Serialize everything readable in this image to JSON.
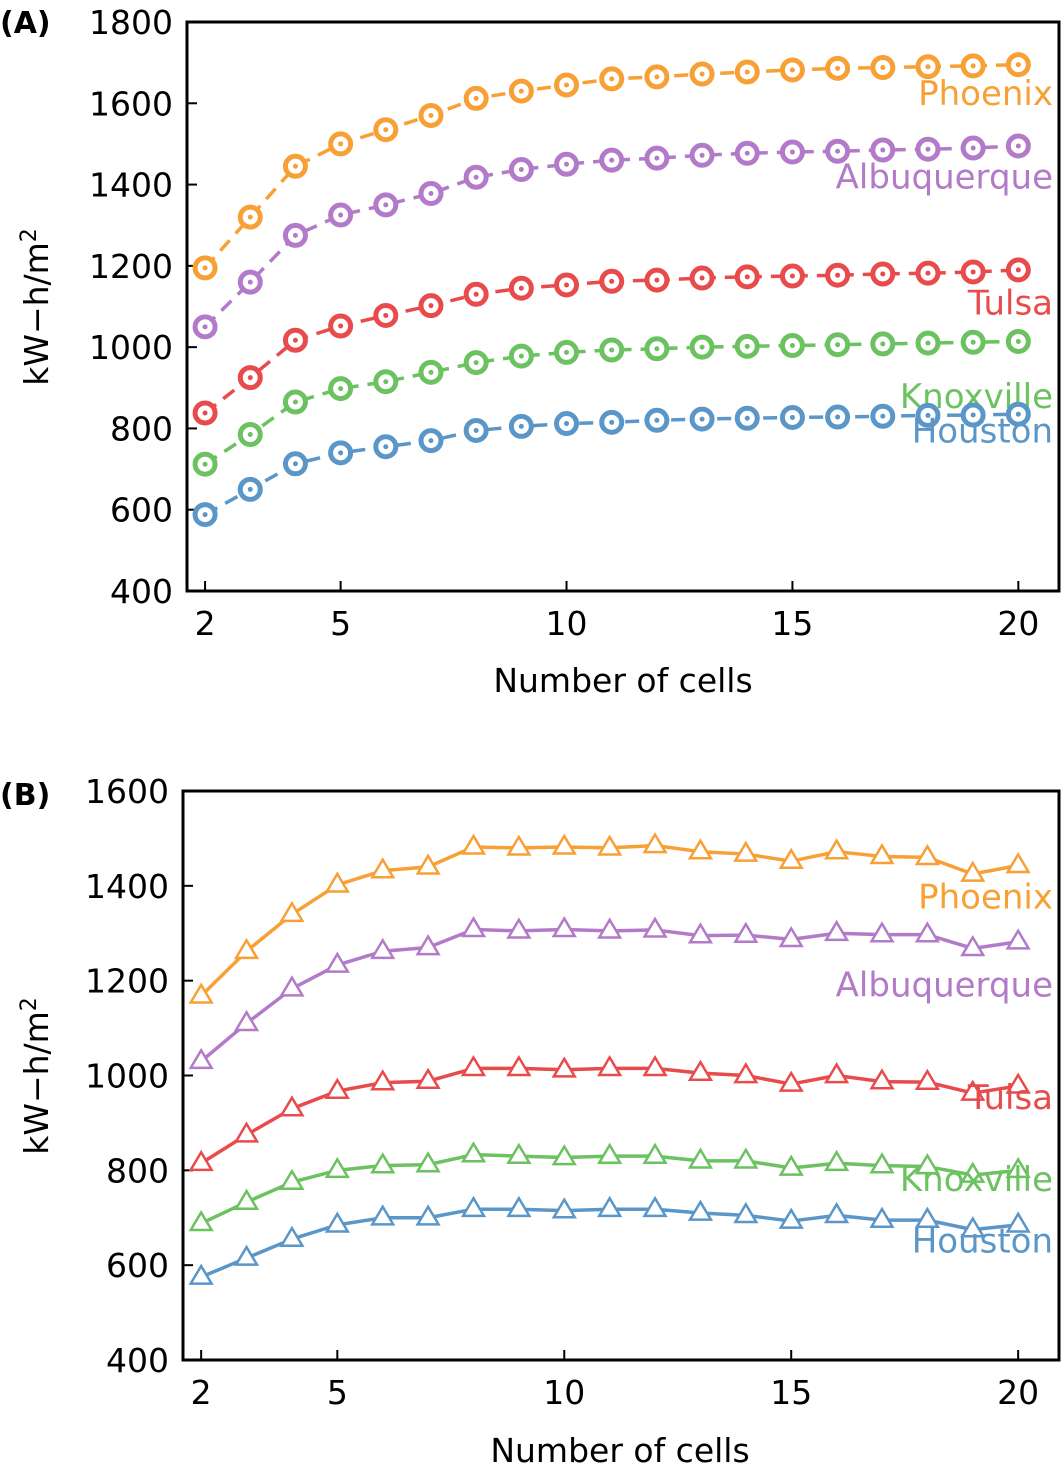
{
  "chart_data": [
    {
      "panel": "(A)",
      "type": "line",
      "marker": "circle",
      "line_style": "dashed",
      "xlabel": "Number of cells",
      "ylabel_main": "kW−h/m",
      "ylabel_sup": "2",
      "xlim": [
        1.6,
        20.9
      ],
      "ylim": [
        400,
        1800
      ],
      "xticks": [
        2,
        5,
        10,
        15,
        20
      ],
      "yticks": [
        400,
        600,
        800,
        1000,
        1200,
        1400,
        1600,
        1800
      ],
      "x": [
        2,
        3,
        4,
        5,
        6,
        7,
        8,
        9,
        10,
        11,
        12,
        13,
        14,
        15,
        16,
        17,
        18,
        19,
        20
      ],
      "series": [
        {
          "name": "Phoenix",
          "color": "#f7a035",
          "label_at": 1625,
          "values": [
            1195,
            1320,
            1445,
            1500,
            1535,
            1570,
            1612,
            1630,
            1645,
            1660,
            1665,
            1672,
            1677,
            1682,
            1686,
            1688,
            1690,
            1692,
            1695
          ]
        },
        {
          "name": "Albuquerque",
          "color": "#b27ac8",
          "label_at": 1420,
          "values": [
            1050,
            1160,
            1275,
            1325,
            1350,
            1378,
            1418,
            1437,
            1450,
            1460,
            1465,
            1472,
            1477,
            1480,
            1482,
            1485,
            1487,
            1490,
            1495
          ]
        },
        {
          "name": "Tulsa",
          "color": "#e84b4b",
          "label_at": 1110,
          "values": [
            838,
            925,
            1017,
            1052,
            1078,
            1102,
            1130,
            1145,
            1153,
            1162,
            1165,
            1170,
            1173,
            1175,
            1177,
            1180,
            1182,
            1185,
            1190
          ]
        },
        {
          "name": "Knoxville",
          "color": "#6cc160",
          "label_at": 880,
          "values": [
            712,
            785,
            865,
            898,
            915,
            938,
            962,
            978,
            987,
            993,
            996,
            1000,
            1002,
            1004,
            1006,
            1008,
            1010,
            1012,
            1014
          ]
        },
        {
          "name": "Houston",
          "color": "#5b96c8",
          "label_at": 795,
          "values": [
            588,
            650,
            713,
            740,
            755,
            770,
            795,
            805,
            812,
            815,
            820,
            823,
            825,
            827,
            828,
            830,
            832,
            833,
            835
          ]
        }
      ]
    },
    {
      "panel": "(B)",
      "type": "line",
      "marker": "triangle",
      "line_style": "solid",
      "xlabel": "Number of cells",
      "ylabel_main": "kW−h/m",
      "ylabel_sup": "2",
      "xlim": [
        1.6,
        20.9
      ],
      "ylim": [
        400,
        1600
      ],
      "xticks": [
        2,
        5,
        10,
        15,
        20
      ],
      "yticks": [
        400,
        600,
        800,
        1000,
        1200,
        1400,
        1600
      ],
      "x": [
        2,
        3,
        4,
        5,
        6,
        7,
        8,
        9,
        10,
        11,
        12,
        13,
        14,
        15,
        16,
        17,
        18,
        19,
        20
      ],
      "series": [
        {
          "name": "Phoenix",
          "color": "#f7a035",
          "label_at": 1378,
          "values": [
            1168,
            1262,
            1340,
            1402,
            1432,
            1440,
            1482,
            1480,
            1482,
            1480,
            1485,
            1472,
            1467,
            1452,
            1472,
            1462,
            1460,
            1425,
            1443
          ]
        },
        {
          "name": "Albuquerque",
          "color": "#b27ac8",
          "label_at": 1192,
          "values": [
            1030,
            1110,
            1183,
            1233,
            1262,
            1270,
            1308,
            1305,
            1308,
            1305,
            1307,
            1295,
            1296,
            1287,
            1300,
            1297,
            1297,
            1268,
            1282
          ]
        },
        {
          "name": "Tulsa",
          "color": "#e84b4b",
          "label_at": 955,
          "values": [
            815,
            875,
            930,
            967,
            985,
            988,
            1015,
            1015,
            1012,
            1015,
            1015,
            1005,
            1000,
            982,
            1000,
            987,
            986,
            963,
            978
          ]
        },
        {
          "name": "Knoxville",
          "color": "#6cc160",
          "label_at": 782,
          "values": [
            688,
            733,
            775,
            800,
            810,
            812,
            833,
            830,
            827,
            830,
            830,
            820,
            820,
            805,
            815,
            810,
            808,
            790,
            800
          ]
        },
        {
          "name": "Houston",
          "color": "#5b96c8",
          "label_at": 652,
          "values": [
            575,
            615,
            655,
            685,
            700,
            700,
            718,
            718,
            715,
            718,
            718,
            710,
            705,
            693,
            705,
            695,
            695,
            675,
            685
          ]
        }
      ]
    }
  ]
}
